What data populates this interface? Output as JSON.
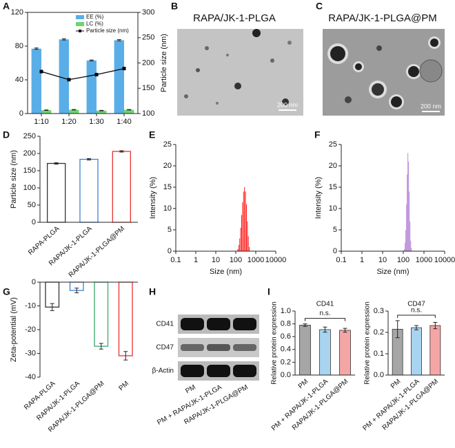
{
  "panel_labels": [
    "A",
    "B",
    "C",
    "D",
    "E",
    "F",
    "G",
    "H",
    "I"
  ],
  "images": [
    {
      "title": "RAPA/JK-1-PLGA",
      "scale_bar": "200 nm"
    },
    {
      "title": "RAPA/JK-1-PLGA@PM",
      "scale_bar": "200 nm"
    }
  ],
  "blot": {
    "rows": [
      "CD41",
      "CD47",
      "β-Actin"
    ],
    "lanes": [
      "PM",
      "PM + RAPA/JK-1-PLGA",
      "RAPA/JK-1-PLGA@PM"
    ]
  },
  "chart_data": [
    {
      "type": "bar",
      "categories": [
        "1:10",
        "1:20",
        "1:30",
        "1:40"
      ],
      "series": [
        {
          "name": "EE (%)",
          "color": "#5aaee8",
          "values": [
            77,
            88,
            63,
            87
          ],
          "errors": [
            0.8,
            0.8,
            0.6,
            0.8
          ]
        },
        {
          "name": "LC (%)",
          "color": "#6fd46f",
          "values": [
            4,
            4.5,
            3.5,
            4.5
          ],
          "errors": [
            0.3,
            0.3,
            0.3,
            0.3
          ]
        },
        {
          "name": "Particle size (nm)",
          "type": "line",
          "axis": "y2",
          "color": "#000000",
          "values": [
            183,
            167,
            177,
            189
          ]
        }
      ],
      "ylim": [
        0,
        120
      ],
      "yticks": [
        0,
        40,
        80,
        120
      ],
      "y2lim": [
        100,
        300
      ],
      "y2ticks": [
        100,
        150,
        200,
        250,
        300
      ],
      "y2label": "Particle size (nm)",
      "legend": "upper right"
    },
    {
      "type": "bar",
      "ylabel": "Particle size (nm)",
      "categories": [
        "RAPA-PLGA",
        "RAPA/JK-1-PLGA",
        "RAPA/JK-1-PLGA@PM"
      ],
      "values": [
        171,
        183,
        206
      ],
      "errors": [
        2,
        2,
        2
      ],
      "colors": [
        "#333333",
        "#3a7fd5",
        "#e83030"
      ],
      "bar_style": "outline",
      "ylim": [
        0,
        250
      ],
      "yticks": [
        0,
        50,
        100,
        150,
        200,
        250
      ]
    },
    {
      "type": "histogram",
      "xlabel": "Size (nm)",
      "ylabel": "Intensity (%)",
      "color": "#ff2020",
      "xscale": "log",
      "bins": [
        120,
        134,
        149.5,
        167,
        186,
        208,
        232,
        259,
        289,
        322,
        360,
        401,
        448,
        500
      ],
      "values": [
        0.5,
        1.5,
        3,
        5.5,
        8.5,
        11.5,
        14,
        15,
        14,
        11,
        7,
        3.5,
        1
      ],
      "xlim": [
        0.1,
        10000
      ],
      "xticks": [
        0.1,
        1,
        10,
        100,
        1000,
        10000
      ],
      "ylim": [
        0,
        25
      ],
      "yticks": [
        0,
        5,
        10,
        15,
        20,
        25
      ]
    },
    {
      "type": "histogram",
      "xlabel": "Size (nm)",
      "ylabel": "Intensity (%)",
      "color": "#9b59c9",
      "xscale": "log",
      "bins": [
        110,
        119,
        128.5,
        139,
        150,
        162,
        175,
        189,
        204,
        221,
        239,
        258
      ],
      "values": [
        0.5,
        2,
        5,
        11,
        18,
        23,
        21,
        14,
        7,
        2.5,
        0.8
      ],
      "xlim": [
        0.1,
        10000
      ],
      "xticks": [
        0.1,
        1,
        10,
        100,
        1000,
        10000
      ],
      "ylim": [
        0,
        25
      ],
      "yticks": [
        0,
        5,
        10,
        15,
        20,
        25
      ]
    },
    {
      "type": "bar",
      "ylabel": "Zeta-potential (mV)",
      "categories": [
        "RAPA-PLGA",
        "RAPA/JK-1-PLGA",
        "RAPA/JK-1-PLGA@PM",
        "PM"
      ],
      "values": [
        -10.5,
        -3.5,
        -27,
        -31
      ],
      "errors": [
        1.5,
        1,
        1.2,
        1.8
      ],
      "colors": [
        "#333333",
        "#3a7fd5",
        "#3aaa6a",
        "#e83030"
      ],
      "bar_style": "outline",
      "ylim": [
        -40,
        0
      ],
      "yticks": [
        0,
        -10,
        -20,
        -30,
        -40
      ]
    },
    {
      "type": "bar",
      "title": "CD41",
      "ylabel": "Relative protein expression",
      "categories": [
        "PM",
        "PM + RAPA/JK-1-PLGA",
        "RAPA/JK-1-PLGA@PM"
      ],
      "values": [
        0.78,
        0.71,
        0.7
      ],
      "errors": [
        0.02,
        0.04,
        0.03
      ],
      "colors": [
        "#a6a6a6",
        "#a8d4f0",
        "#f4a6a6"
      ],
      "bar_style": "filled",
      "ylim": [
        0,
        1
      ],
      "yticks": [
        {
          "value": 0,
          "label": "0.0"
        },
        0.2,
        0.4,
        0.6,
        0.8,
        {
          "value": 1,
          "label": "1.0"
        }
      ],
      "annotation": "n.s."
    },
    {
      "type": "bar",
      "title": "CD47",
      "ylabel": "Relative protein expression",
      "categories": [
        "PM",
        "PM + RAPA/JK-1-PLGA",
        "RAPA/JK-1-PLGA@PM"
      ],
      "values": [
        0.215,
        0.222,
        0.232
      ],
      "errors": [
        0.04,
        0.01,
        0.015
      ],
      "colors": [
        "#a6a6a6",
        "#a8d4f0",
        "#f4a6a6"
      ],
      "bar_style": "filled",
      "ylim": [
        0,
        0.3
      ],
      "yticks": [
        {
          "value": 0,
          "label": "0.0"
        },
        0.1,
        0.2,
        0.3
      ],
      "annotation": "n.s."
    }
  ]
}
